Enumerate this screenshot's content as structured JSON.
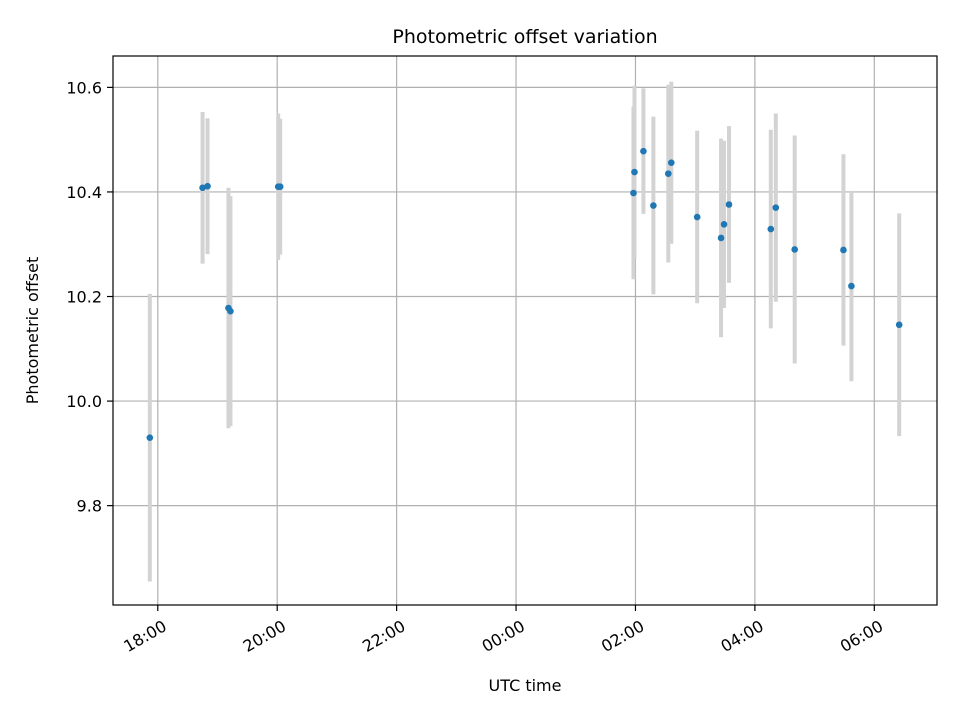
{
  "chart_data": {
    "type": "scatter",
    "title": "Photometric offset variation",
    "xlabel": "UTC time",
    "ylabel": "Photometric offset",
    "x_axis_kind": "time",
    "x_ticks": [
      "18:00",
      "20:00",
      "22:00",
      "00:00",
      "02:00",
      "04:00",
      "06:00"
    ],
    "x_tick_times": [
      "2024-01-01T18:00",
      "2024-01-01T20:00",
      "2024-01-01T22:00",
      "2024-01-02T00:00",
      "2024-01-02T02:00",
      "2024-01-02T04:00",
      "2024-01-02T06:00"
    ],
    "xlim": [
      "2024-01-01T17:15",
      "2024-01-02T07:03"
    ],
    "y_ticks": [
      "9.8",
      "10.0",
      "10.2",
      "10.4",
      "10.6"
    ],
    "y_tick_values": [
      9.8,
      10.0,
      10.2,
      10.4,
      10.6
    ],
    "ylim": [
      9.61,
      10.66
    ],
    "grid": true,
    "colors": {
      "point": "#1f77b4",
      "errorbar": "#d3d3d3",
      "grid": "#b0b0b0"
    },
    "points": [
      {
        "x": "2024-01-01T17:52",
        "y": 9.93,
        "err": 0.275
      },
      {
        "x": "2024-01-01T18:45",
        "y": 10.408,
        "err": 0.145
      },
      {
        "x": "2024-01-01T18:50",
        "y": 10.411,
        "err": 0.13
      },
      {
        "x": "2024-01-01T19:11",
        "y": 10.178,
        "err": 0.23
      },
      {
        "x": "2024-01-01T19:13",
        "y": 10.172,
        "err": 0.22
      },
      {
        "x": "2024-01-01T20:01",
        "y": 10.41,
        "err": 0.14
      },
      {
        "x": "2024-01-01T20:03",
        "y": 10.41,
        "err": 0.13
      },
      {
        "x": "2024-01-02T01:58",
        "y": 10.398,
        "err": 0.165
      },
      {
        "x": "2024-01-02T01:59",
        "y": 10.438,
        "err": 0.165
      },
      {
        "x": "2024-01-02T02:08",
        "y": 10.478,
        "err": 0.12
      },
      {
        "x": "2024-01-02T02:18",
        "y": 10.374,
        "err": 0.17
      },
      {
        "x": "2024-01-02T02:33",
        "y": 10.435,
        "err": 0.17
      },
      {
        "x": "2024-01-02T02:36",
        "y": 10.456,
        "err": 0.155
      },
      {
        "x": "2024-01-02T03:02",
        "y": 10.352,
        "err": 0.165
      },
      {
        "x": "2024-01-02T03:26",
        "y": 10.312,
        "err": 0.19
      },
      {
        "x": "2024-01-02T03:29",
        "y": 10.338,
        "err": 0.16
      },
      {
        "x": "2024-01-02T03:34",
        "y": 10.376,
        "err": 0.15
      },
      {
        "x": "2024-01-02T04:16",
        "y": 10.329,
        "err": 0.19
      },
      {
        "x": "2024-01-02T04:21",
        "y": 10.37,
        "err": 0.18
      },
      {
        "x": "2024-01-02T04:40",
        "y": 10.29,
        "err": 0.218
      },
      {
        "x": "2024-01-02T05:29",
        "y": 10.289,
        "err": 0.183
      },
      {
        "x": "2024-01-02T05:37",
        "y": 10.22,
        "err": 0.182
      },
      {
        "x": "2024-01-02T06:25",
        "y": 10.146,
        "err": 0.213
      }
    ]
  }
}
